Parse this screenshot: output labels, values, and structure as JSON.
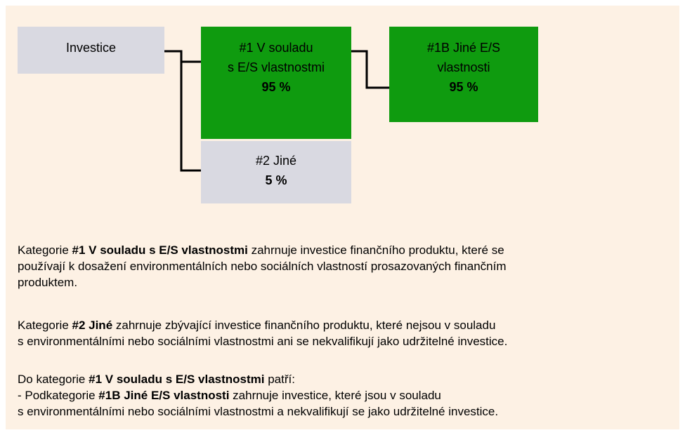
{
  "nodes": [
    {
      "lines": [
        "Investice"
      ],
      "value": null
    },
    {
      "lines": [
        "#1 V souladu",
        "s E/S vlastnostmi"
      ],
      "value": "95 %"
    },
    {
      "lines": [
        "#1B Jiné E/S",
        "vlastnosti"
      ],
      "value": "95 %"
    },
    {
      "lines": [
        "#2 Jiné"
      ],
      "value": "5 %"
    }
  ],
  "paragraphs": [
    [
      [
        {
          "text": "Kategorie "
        },
        {
          "text": "#1 V souladu s E/S vlastnostmi",
          "bold": true
        },
        {
          "text": " zahrnuje investice finančního produktu, které se"
        }
      ],
      [
        {
          "text": "používají k dosažení environmentálních nebo sociálních vlastností prosazovaných finančním"
        }
      ],
      [
        {
          "text": "produktem."
        }
      ]
    ],
    [
      [
        {
          "text": "Kategorie "
        },
        {
          "text": "#2 Jiné",
          "bold": true
        },
        {
          "text": " zahrnuje zbývající investice finančního produktu, které nejsou v souladu"
        }
      ],
      [
        {
          "text": "s environmentálními nebo sociálními vlastnostmi ani se nekvalifikují jako udržitelné investice."
        }
      ]
    ],
    [
      [
        {
          "text": "Do kategorie "
        },
        {
          "text": "#1 V souladu s E/S vlastnostmi",
          "bold": true
        },
        {
          "text": " patří:"
        }
      ],
      [
        {
          "text": "- Podkategorie "
        },
        {
          "text": "#1B Jiné E/S vlastnosti",
          "bold": true
        },
        {
          "text": " zahrnuje investice, které jsou v souladu"
        }
      ],
      [
        {
          "text": "s environmentálními nebo sociálními vlastnostmi a nekvalifikují se jako udržitelné investice."
        }
      ]
    ]
  ]
}
